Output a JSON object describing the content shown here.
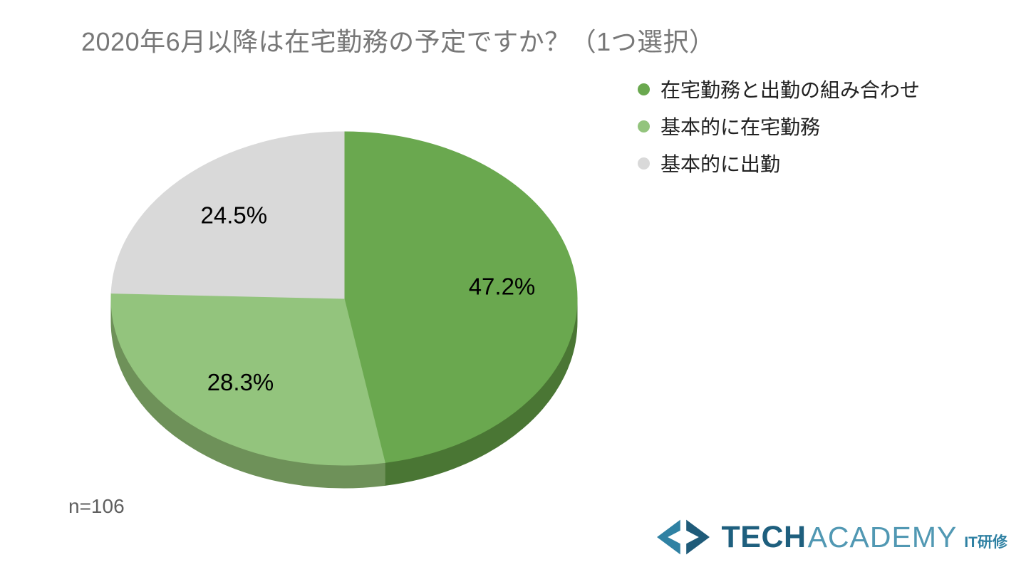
{
  "title": "2020年6月以降は在宅勤務の予定ですか？（1つ選択）",
  "note": "n=106",
  "chart_data": {
    "type": "pie",
    "title": "2020年6月以降は在宅勤務の予定ですか？（1つ選択）",
    "is_3d": true,
    "direction": "clockwise",
    "start_angle_deg": 0,
    "legend_position": "top-right",
    "sample_size_note": "n=106",
    "label_color": "#000000",
    "slices": [
      {
        "label": "在宅勤務と出勤の組み合わせ",
        "value": 47.2,
        "display": "47.2%",
        "color": "#6aa84f",
        "side_color": "#4a7634"
      },
      {
        "label": "基本的に在宅勤務",
        "value": 28.3,
        "display": "28.3%",
        "color": "#93c47d",
        "side_color": "#6e9159"
      },
      {
        "label": "基本的に出勤",
        "value": 24.5,
        "display": "24.5%",
        "color": "#d9d9d9",
        "side_color": "#a0a0a0"
      }
    ]
  },
  "logo": {
    "part_bold": "TECH",
    "part_light": "ACADEMY",
    "suffix": "IT研修",
    "color_bold": "#1e5f7e",
    "color_light": "#5198b3",
    "color_suffix": "#2f81a3",
    "icon_left_color": "#2f81a3",
    "icon_right_color": "#1f5b79"
  }
}
